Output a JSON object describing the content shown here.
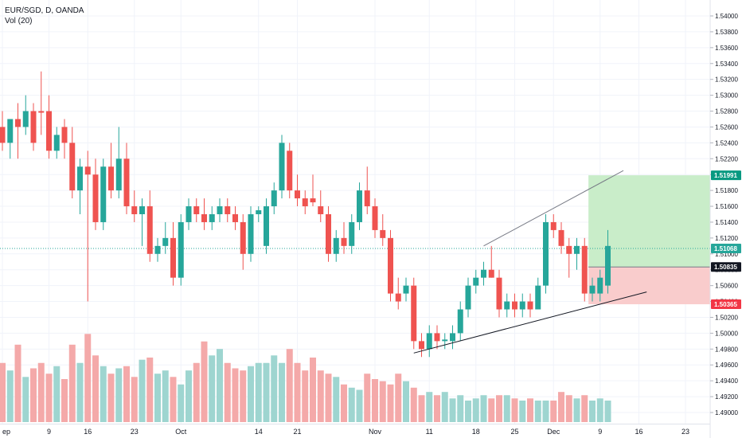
{
  "header": {
    "symbol_line": "EUR/SGD, D, OANDA",
    "volume_label": "Vol (20)"
  },
  "chart_data": {
    "type": "candlestick",
    "symbol": "EUR/SGD",
    "interval": "D",
    "source": "OANDA",
    "price_axis_ticks": [
      "1.54000",
      "1.53800",
      "1.53600",
      "1.53400",
      "1.53200",
      "1.53000",
      "1.52800",
      "1.52600",
      "1.52400",
      "1.52200",
      "1.52000",
      "1.51800",
      "1.51600",
      "1.51400",
      "1.51200",
      "1.51000",
      "1.50800",
      "1.50600",
      "1.50400",
      "1.50200",
      "1.50000",
      "1.49800",
      "1.49600",
      "1.49400",
      "1.49200",
      "1.49000"
    ],
    "ylim": [
      1.488,
      1.542
    ],
    "time_axis_labels": [
      "ep",
      "9",
      "16",
      "23",
      "Oct",
      "14",
      "21",
      "Nov",
      "11",
      "18",
      "25",
      "Dec",
      "9",
      "16",
      "23"
    ],
    "price_markers": [
      {
        "label": "1.51991",
        "value": 1.51991,
        "color": "#089981"
      },
      {
        "label": "1.51068",
        "value": 1.51068,
        "color": "#26a69a"
      },
      {
        "label": "1.50835",
        "value": 1.50835,
        "color": "#131722"
      },
      {
        "label": "1.50365",
        "value": 1.50365,
        "color": "#f23645"
      }
    ],
    "position": {
      "entry": 1.50835,
      "target": 1.51991,
      "stop": 1.50365
    },
    "colors": {
      "up": "#26a69a",
      "down": "#ef5350",
      "vol_up": "#9ed5d0",
      "vol_down": "#f4a9a9",
      "profit_zone": "#c9edc9",
      "loss_zone": "#f9cccc"
    },
    "candles": [
      {
        "o": 1.526,
        "h": 1.528,
        "l": 1.523,
        "c": 1.524
      },
      {
        "o": 1.524,
        "h": 1.527,
        "l": 1.522,
        "c": 1.527
      },
      {
        "o": 1.527,
        "h": 1.529,
        "l": 1.522,
        "c": 1.526
      },
      {
        "o": 1.526,
        "h": 1.53,
        "l": 1.525,
        "c": 1.528
      },
      {
        "o": 1.528,
        "h": 1.529,
        "l": 1.523,
        "c": 1.524
      },
      {
        "o": 1.528,
        "h": 1.533,
        "l": 1.525,
        "c": 1.5278
      },
      {
        "o": 1.528,
        "h": 1.53,
        "l": 1.522,
        "c": 1.523
      },
      {
        "o": 1.523,
        "h": 1.526,
        "l": 1.522,
        "c": 1.525
      },
      {
        "o": 1.526,
        "h": 1.527,
        "l": 1.522,
        "c": 1.524
      },
      {
        "o": 1.524,
        "h": 1.526,
        "l": 1.517,
        "c": 1.518
      },
      {
        "o": 1.518,
        "h": 1.522,
        "l": 1.515,
        "c": 1.521
      },
      {
        "o": 1.521,
        "h": 1.523,
        "l": 1.504,
        "c": 1.52
      },
      {
        "o": 1.52,
        "h": 1.522,
        "l": 1.513,
        "c": 1.514
      },
      {
        "o": 1.514,
        "h": 1.522,
        "l": 1.513,
        "c": 1.521
      },
      {
        "o": 1.521,
        "h": 1.524,
        "l": 1.517,
        "c": 1.518
      },
      {
        "o": 1.518,
        "h": 1.526,
        "l": 1.517,
        "c": 1.522
      },
      {
        "o": 1.522,
        "h": 1.524,
        "l": 1.515,
        "c": 1.516
      },
      {
        "o": 1.516,
        "h": 1.518,
        "l": 1.514,
        "c": 1.515
      },
      {
        "o": 1.515,
        "h": 1.517,
        "l": 1.511,
        "c": 1.516
      },
      {
        "o": 1.516,
        "h": 1.518,
        "l": 1.509,
        "c": 1.51
      },
      {
        "o": 1.51,
        "h": 1.512,
        "l": 1.509,
        "c": 1.511
      },
      {
        "o": 1.511,
        "h": 1.514,
        "l": 1.51,
        "c": 1.512
      },
      {
        "o": 1.512,
        "h": 1.514,
        "l": 1.506,
        "c": 1.507
      },
      {
        "o": 1.507,
        "h": 1.515,
        "l": 1.506,
        "c": 1.514
      },
      {
        "o": 1.514,
        "h": 1.517,
        "l": 1.513,
        "c": 1.516
      },
      {
        "o": 1.516,
        "h": 1.517,
        "l": 1.514,
        "c": 1.515
      },
      {
        "o": 1.515,
        "h": 1.517,
        "l": 1.513,
        "c": 1.514
      },
      {
        "o": 1.514,
        "h": 1.516,
        "l": 1.513,
        "c": 1.515
      },
      {
        "o": 1.515,
        "h": 1.517,
        "l": 1.514,
        "c": 1.516
      },
      {
        "o": 1.516,
        "h": 1.517,
        "l": 1.514,
        "c": 1.515
      },
      {
        "o": 1.515,
        "h": 1.516,
        "l": 1.513,
        "c": 1.514
      },
      {
        "o": 1.514,
        "h": 1.515,
        "l": 1.508,
        "c": 1.51
      },
      {
        "o": 1.51,
        "h": 1.516,
        "l": 1.509,
        "c": 1.515
      },
      {
        "o": 1.515,
        "h": 1.516,
        "l": 1.514,
        "c": 1.5155
      },
      {
        "o": 1.511,
        "h": 1.517,
        "l": 1.51,
        "c": 1.516
      },
      {
        "o": 1.516,
        "h": 1.519,
        "l": 1.515,
        "c": 1.518
      },
      {
        "o": 1.518,
        "h": 1.525,
        "l": 1.517,
        "c": 1.524
      },
      {
        "o": 1.523,
        "h": 1.524,
        "l": 1.517,
        "c": 1.518
      },
      {
        "o": 1.518,
        "h": 1.52,
        "l": 1.516,
        "c": 1.517
      },
      {
        "o": 1.517,
        "h": 1.518,
        "l": 1.515,
        "c": 1.516
      },
      {
        "o": 1.517,
        "h": 1.52,
        "l": 1.516,
        "c": 1.5165
      },
      {
        "o": 1.516,
        "h": 1.518,
        "l": 1.514,
        "c": 1.515
      },
      {
        "o": 1.515,
        "h": 1.516,
        "l": 1.509,
        "c": 1.51
      },
      {
        "o": 1.51,
        "h": 1.513,
        "l": 1.509,
        "c": 1.512
      },
      {
        "o": 1.512,
        "h": 1.514,
        "l": 1.51,
        "c": 1.511
      },
      {
        "o": 1.511,
        "h": 1.515,
        "l": 1.51,
        "c": 1.514
      },
      {
        "o": 1.514,
        "h": 1.519,
        "l": 1.513,
        "c": 1.518
      },
      {
        "o": 1.518,
        "h": 1.521,
        "l": 1.515,
        "c": 1.516
      },
      {
        "o": 1.516,
        "h": 1.517,
        "l": 1.512,
        "c": 1.513
      },
      {
        "o": 1.513,
        "h": 1.515,
        "l": 1.511,
        "c": 1.512
      },
      {
        "o": 1.512,
        "h": 1.513,
        "l": 1.504,
        "c": 1.505
      },
      {
        "o": 1.505,
        "h": 1.507,
        "l": 1.503,
        "c": 1.504
      },
      {
        "o": 1.505,
        "h": 1.507,
        "l": 1.504,
        "c": 1.506
      },
      {
        "o": 1.506,
        "h": 1.507,
        "l": 1.498,
        "c": 1.499
      },
      {
        "o": 1.499,
        "h": 1.5,
        "l": 1.497,
        "c": 1.498
      },
      {
        "o": 1.498,
        "h": 1.501,
        "l": 1.497,
        "c": 1.5
      },
      {
        "o": 1.5,
        "h": 1.501,
        "l": 1.498,
        "c": 1.499
      },
      {
        "o": 1.499,
        "h": 1.5,
        "l": 1.498,
        "c": 1.4992
      },
      {
        "o": 1.499,
        "h": 1.501,
        "l": 1.498,
        "c": 1.5
      },
      {
        "o": 1.5,
        "h": 1.504,
        "l": 1.499,
        "c": 1.503
      },
      {
        "o": 1.503,
        "h": 1.507,
        "l": 1.502,
        "c": 1.506
      },
      {
        "o": 1.506,
        "h": 1.508,
        "l": 1.505,
        "c": 1.507
      },
      {
        "o": 1.507,
        "h": 1.509,
        "l": 1.506,
        "c": 1.508
      },
      {
        "o": 1.508,
        "h": 1.511,
        "l": 1.507,
        "c": 1.507
      },
      {
        "o": 1.507,
        "h": 1.508,
        "l": 1.502,
        "c": 1.503
      },
      {
        "o": 1.503,
        "h": 1.505,
        "l": 1.502,
        "c": 1.504
      },
      {
        "o": 1.504,
        "h": 1.505,
        "l": 1.502,
        "c": 1.503
      },
      {
        "o": 1.503,
        "h": 1.505,
        "l": 1.502,
        "c": 1.504
      },
      {
        "o": 1.504,
        "h": 1.505,
        "l": 1.502,
        "c": 1.503
      },
      {
        "o": 1.503,
        "h": 1.507,
        "l": 1.503,
        "c": 1.506
      },
      {
        "o": 1.506,
        "h": 1.515,
        "l": 1.505,
        "c": 1.514
      },
      {
        "o": 1.514,
        "h": 1.515,
        "l": 1.512,
        "c": 1.513
      },
      {
        "o": 1.513,
        "h": 1.514,
        "l": 1.51,
        "c": 1.511
      },
      {
        "o": 1.511,
        "h": 1.512,
        "l": 1.507,
        "c": 1.51
      },
      {
        "o": 1.51,
        "h": 1.512,
        "l": 1.508,
        "c": 1.511
      },
      {
        "o": 1.511,
        "h": 1.512,
        "l": 1.504,
        "c": 1.505
      },
      {
        "o": 1.505,
        "h": 1.507,
        "l": 1.504,
        "c": 1.506
      },
      {
        "o": 1.505,
        "h": 1.508,
        "l": 1.504,
        "c": 1.507
      },
      {
        "o": 1.506,
        "h": 1.513,
        "l": 1.505,
        "c": 1.511
      }
    ],
    "volume": [
      0.55,
      0.48,
      0.72,
      0.42,
      0.5,
      0.55,
      0.45,
      0.52,
      0.4,
      0.72,
      0.55,
      0.82,
      0.62,
      0.52,
      0.45,
      0.5,
      0.52,
      0.42,
      0.58,
      0.6,
      0.45,
      0.48,
      0.42,
      0.35,
      0.48,
      0.55,
      0.75,
      0.62,
      0.68,
      0.55,
      0.5,
      0.48,
      0.52,
      0.55,
      0.55,
      0.62,
      0.55,
      0.68,
      0.55,
      0.48,
      0.6,
      0.48,
      0.45,
      0.42,
      0.35,
      0.32,
      0.3,
      0.45,
      0.4,
      0.38,
      0.35,
      0.45,
      0.38,
      0.32,
      0.25,
      0.28,
      0.25,
      0.28,
      0.22,
      0.25,
      0.2,
      0.22,
      0.25,
      0.22,
      0.25,
      0.25,
      0.22,
      0.2,
      0.22,
      0.2,
      0.2,
      0.2,
      0.28,
      0.25,
      0.22,
      0.25,
      0.2,
      0.22,
      0.2
    ],
    "trendlines": [
      {
        "from": [
          53,
          1.4975
        ],
        "to": [
          83,
          1.5052
        ],
        "color": "#131722"
      },
      {
        "from": [
          62,
          1.511
        ],
        "to": [
          80,
          1.5205
        ],
        "color": "#787b86"
      }
    ]
  }
}
